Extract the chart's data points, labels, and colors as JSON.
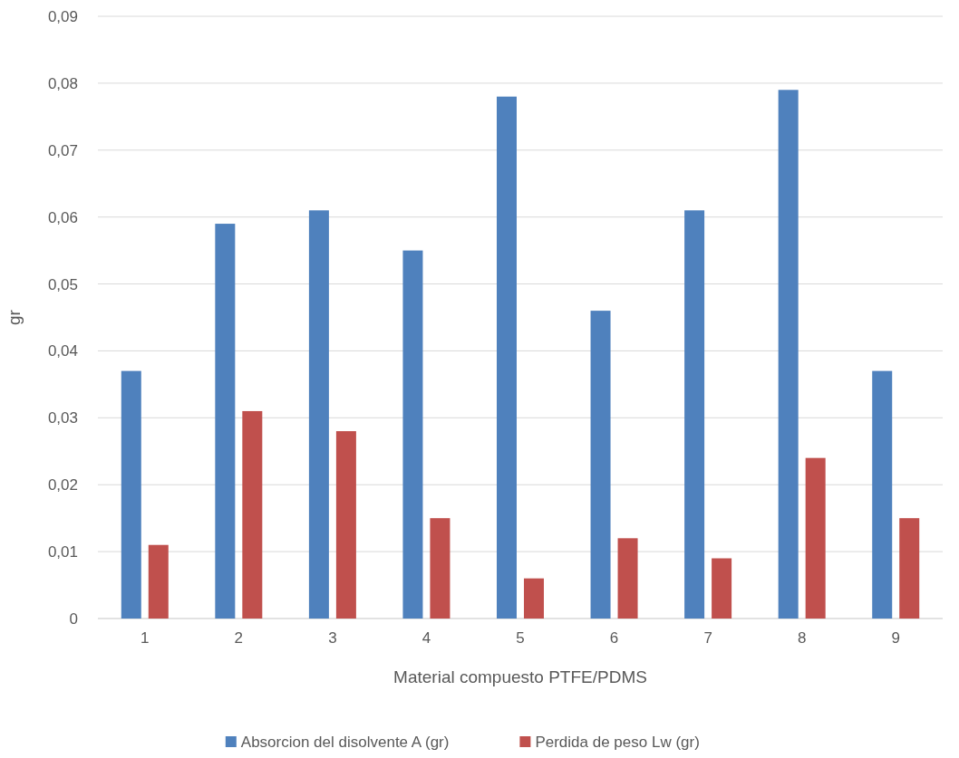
{
  "chart_data": {
    "type": "bar",
    "xlabel": "Material compuesto PTFE/PDMS",
    "ylabel": "gr",
    "categories": [
      "1",
      "2",
      "3",
      "4",
      "5",
      "6",
      "7",
      "8",
      "9"
    ],
    "series": [
      {
        "name": "Absorcion del disolvente A (gr)",
        "color": "#4f81bd",
        "values": [
          0.037,
          0.059,
          0.061,
          0.055,
          0.078,
          0.046,
          0.061,
          0.079,
          0.037
        ]
      },
      {
        "name": "Perdida de peso Lw (gr)",
        "color": "#c0504d",
        "values": [
          0.011,
          0.031,
          0.028,
          0.015,
          0.006,
          0.012,
          0.009,
          0.024,
          0.015
        ]
      }
    ],
    "ylim": [
      0,
      0.09
    ],
    "yticks": [
      0,
      {
        "value": 0.01,
        "label": "0,01"
      },
      {
        "value": 0.02,
        "label": "0,02"
      },
      {
        "value": 0.03,
        "label": "0,03"
      },
      {
        "value": 0.04,
        "label": "0,04"
      },
      {
        "value": 0.05,
        "label": "0,05"
      },
      {
        "value": 0.06,
        "label": "0,06"
      },
      {
        "value": 0.07,
        "label": "0,07"
      },
      {
        "value": 0.08,
        "label": "0,08"
      },
      {
        "value": 0.09,
        "label": "0,09"
      }
    ],
    "grid": "y",
    "legend": "bottom"
  }
}
